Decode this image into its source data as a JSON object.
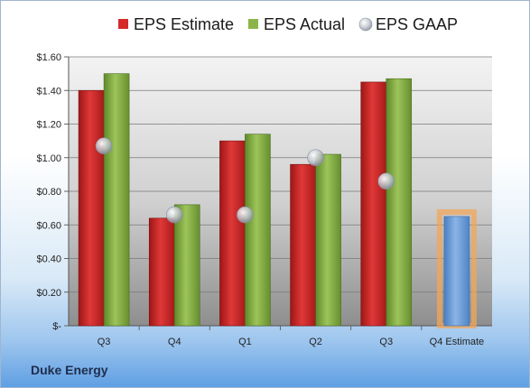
{
  "company": "Duke Energy",
  "chart_data": {
    "type": "bar",
    "categories": [
      "Q3",
      "Q4",
      "Q1",
      "Q2",
      "Q3",
      "Q4 Estimate"
    ],
    "series": [
      {
        "name": "EPS Estimate",
        "values": [
          1.4,
          0.64,
          1.1,
          0.96,
          1.45,
          null
        ],
        "color": "#d42a2a"
      },
      {
        "name": "EPS Actual",
        "values": [
          1.5,
          0.72,
          1.14,
          1.02,
          1.47,
          null
        ],
        "color": "#8cb44a"
      },
      {
        "name": "EPS GAAP",
        "values": [
          1.07,
          0.66,
          0.66,
          1.0,
          0.86,
          null
        ],
        "color": "#b8bec8",
        "style": "bubble"
      },
      {
        "name": "Q4 Estimate",
        "values": [
          null,
          null,
          null,
          null,
          null,
          0.65
        ],
        "color": "#6f9fd8",
        "highlight": "#f2a65a"
      }
    ],
    "y_ticks": [
      "$-",
      "$0.20",
      "$0.40",
      "$0.60",
      "$0.80",
      "$1.00",
      "$1.20",
      "$1.40",
      "$1.60"
    ],
    "ylim": [
      0,
      1.6
    ],
    "grid": true,
    "legend": "top"
  }
}
